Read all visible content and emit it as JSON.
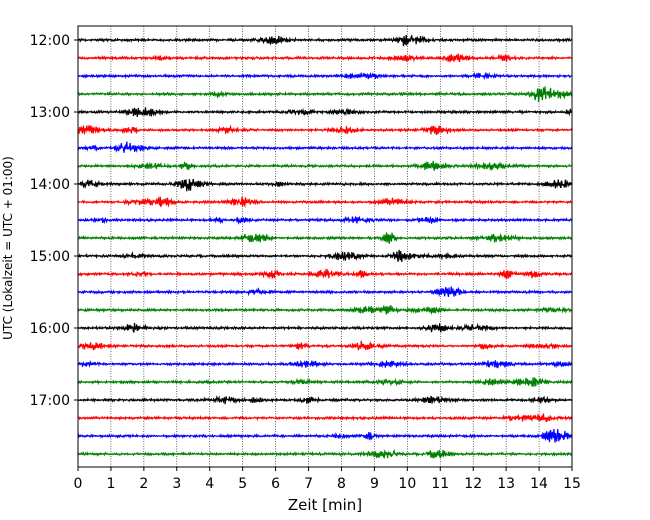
{
  "chart_data": {
    "type": "line",
    "title": "",
    "xlabel": "Zeit  [min]",
    "ylabel": "UTC (Lokalzeit = UTC + 01:00)",
    "x_range": [
      0,
      15
    ],
    "x_ticks": [
      "0",
      "1",
      "2",
      "3",
      "4",
      "5",
      "6",
      "7",
      "8",
      "9",
      "10",
      "11",
      "12",
      "13",
      "14",
      "15"
    ],
    "y_tick_labels": [
      "12:00",
      "13:00",
      "14:00",
      "15:00",
      "16:00",
      "17:00"
    ],
    "trace_start_times": [
      "12:00",
      "12:15",
      "12:30",
      "12:45",
      "13:00",
      "13:15",
      "13:30",
      "13:45",
      "14:00",
      "14:15",
      "14:30",
      "14:45",
      "15:00",
      "15:15",
      "15:30",
      "15:45",
      "16:00",
      "16:15",
      "16:30",
      "16:45",
      "17:00",
      "17:15",
      "17:30",
      "17:45"
    ],
    "trace_colors": [
      "#000000",
      "#ff0000",
      "#0000ff",
      "#008000"
    ],
    "grid_x": true,
    "series": []
  }
}
